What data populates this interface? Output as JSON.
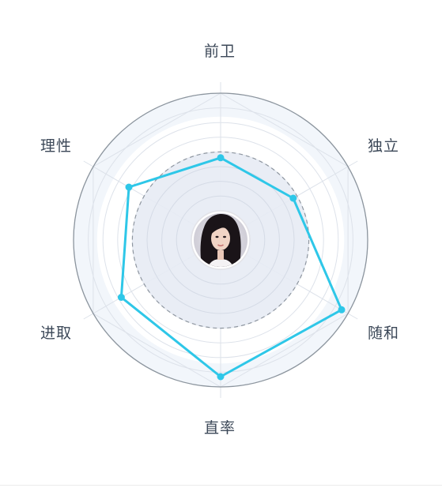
{
  "chart_data": {
    "type": "radar",
    "axes": [
      "前卫",
      "独立",
      "随和",
      "直率",
      "进取",
      "理性"
    ],
    "series": [
      {
        "values": [
          56,
          57,
          95,
          93,
          78,
          72
        ]
      }
    ],
    "rlim": [
      0,
      100
    ],
    "reference_level": 60,
    "ring_count": 10,
    "grid": true,
    "colors": {
      "series": "#2ec7e8",
      "reference_fill": "#e7ebf4",
      "reference_stroke": "#8e96a0",
      "outer_ring": "#8c959e",
      "grid": "#dde2ea",
      "outer_band": "#f2f6fb",
      "label": "#3c4858"
    },
    "center_avatar": "woman-portrait"
  }
}
